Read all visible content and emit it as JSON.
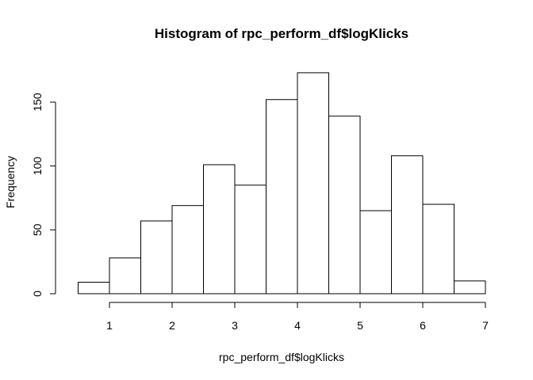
{
  "chart_data": {
    "type": "bar",
    "title": "Histogram of rpc_perform_df$logKlicks",
    "xlabel": "rpc_perform_df$logKlicks",
    "ylabel": "Frequency",
    "bin_edges": [
      0.5,
      1,
      1.5,
      2,
      2.5,
      3,
      3.5,
      4,
      4.5,
      5,
      5.5,
      6,
      6.5,
      7
    ],
    "values": [
      9,
      28,
      57,
      69,
      101,
      85,
      152,
      173,
      139,
      65,
      108,
      70,
      10
    ],
    "xlim": [
      0.5,
      7
    ],
    "ylim": [
      0,
      175
    ],
    "x_ticks": [
      1,
      2,
      3,
      4,
      5,
      6,
      7
    ],
    "x_tick_labels": [
      "1",
      "2",
      "3",
      "4",
      "5",
      "6",
      "7"
    ],
    "y_ticks": [
      0,
      50,
      100,
      150
    ],
    "y_tick_labels": [
      "0",
      "50",
      "100",
      "150"
    ],
    "grid": false,
    "bar_fill": "#ffffff",
    "bar_stroke": "#000000"
  }
}
